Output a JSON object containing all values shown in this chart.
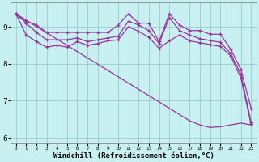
{
  "background_color": "#c8f0f0",
  "grid_color": "#99cccc",
  "line_color": "#993399",
  "xlim": [
    -0.5,
    23.5
  ],
  "ylim": [
    5.85,
    9.65
  ],
  "xlabel": "Windchill (Refroidissement éolien,°C)",
  "xlabel_fontsize": 6.5,
  "yticks": [
    6,
    7,
    8,
    9
  ],
  "xticks": [
    0,
    1,
    2,
    3,
    4,
    5,
    6,
    7,
    8,
    9,
    10,
    11,
    12,
    13,
    14,
    15,
    16,
    17,
    18,
    19,
    20,
    21,
    22,
    23
  ],
  "series1": [
    9.35,
    9.15,
    9.05,
    8.85,
    8.85,
    8.85,
    8.85,
    8.85,
    8.85,
    8.85,
    9.05,
    9.35,
    9.1,
    9.1,
    8.6,
    9.35,
    9.05,
    8.9,
    8.9,
    8.8,
    8.8,
    8.4,
    7.85,
    6.8
  ],
  "series2": [
    9.35,
    9.1,
    8.85,
    8.65,
    8.65,
    8.65,
    8.7,
    8.6,
    8.65,
    8.7,
    8.75,
    9.15,
    9.05,
    8.9,
    8.55,
    9.25,
    8.9,
    8.78,
    8.68,
    8.63,
    8.58,
    8.28,
    7.72,
    6.42
  ],
  "series3": [
    9.35,
    8.78,
    8.6,
    8.45,
    8.5,
    8.45,
    8.6,
    8.5,
    8.55,
    8.62,
    8.65,
    9.0,
    8.88,
    8.72,
    8.42,
    8.62,
    8.78,
    8.62,
    8.57,
    8.52,
    8.47,
    8.22,
    7.62,
    6.37
  ],
  "series4_diagonal": [
    9.35,
    9.18,
    9.01,
    8.84,
    8.67,
    8.5,
    8.33,
    8.16,
    7.99,
    7.82,
    7.65,
    7.48,
    7.31,
    7.14,
    6.97,
    6.8,
    6.63,
    6.46,
    6.35,
    6.28,
    6.3,
    6.35,
    6.4,
    6.35
  ]
}
